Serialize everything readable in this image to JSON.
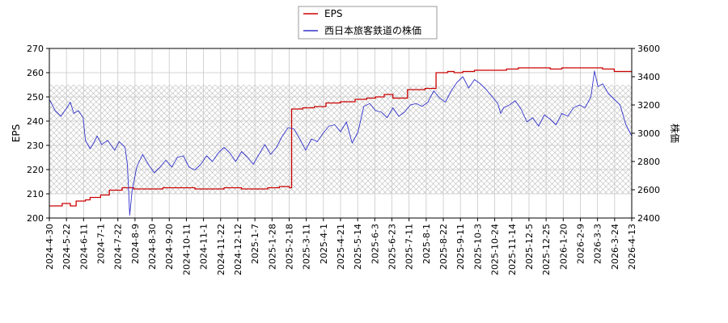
{
  "chart_data": {
    "type": "line",
    "x_tick_labels": [
      "2024-4-30",
      "2024-5-22",
      "2024-6-11",
      "2024-7-1",
      "2024-7-22",
      "2024-8-9",
      "2024-8-30",
      "2024-9-20",
      "2024-10-11",
      "2024-11-1",
      "2024-11-22",
      "2024-12-12",
      "2025-1-7",
      "2025-1-28",
      "2025-2-18",
      "2025-3-11",
      "2025-4-1",
      "2025-4-21",
      "2025-5-14",
      "2025-6-3",
      "2025-6-23",
      "2025-7-11",
      "2025-8-1",
      "2025-8-22",
      "2025-9-11",
      "2025-10-3",
      "2025-10-24",
      "2025-11-14",
      "2025-12-5",
      "2025-12-25",
      "2026-1-20",
      "2026-2-9",
      "2026-3-3",
      "2026-3-24",
      "2026-4-13"
    ],
    "left_axis": {
      "label": "EPS",
      "ylim": [
        200,
        270
      ],
      "ticks": [
        200,
        210,
        220,
        230,
        240,
        250,
        260,
        270
      ]
    },
    "right_axis": {
      "label": "株価",
      "ylim": [
        2400,
        3600
      ],
      "ticks": [
        2400,
        2600,
        2800,
        3000,
        3200,
        3400,
        3600
      ]
    },
    "hatched_band": [
      210,
      255
    ],
    "grid": true,
    "legend_position": "top-center",
    "series": [
      {
        "name": "EPS",
        "axis": "left",
        "color": "#cc0000",
        "step": true,
        "points": [
          [
            0,
            205
          ],
          [
            2.2,
            206
          ],
          [
            3.6,
            205
          ],
          [
            4.6,
            207
          ],
          [
            6.2,
            207.5
          ],
          [
            7,
            208.5
          ],
          [
            8.8,
            209.5
          ],
          [
            10.3,
            211.5
          ],
          [
            12.5,
            212.5
          ],
          [
            14.5,
            212
          ],
          [
            16.5,
            212
          ],
          [
            18.7,
            212
          ],
          [
            19.5,
            212.5
          ],
          [
            21.5,
            212.5
          ],
          [
            25,
            212
          ],
          [
            27,
            212
          ],
          [
            30,
            212.5
          ],
          [
            33,
            212
          ],
          [
            36,
            212
          ],
          [
            37.5,
            212.5
          ],
          [
            39.5,
            213
          ],
          [
            41.2,
            212.5
          ],
          [
            41.6,
            245
          ],
          [
            43.5,
            245.5
          ],
          [
            45.5,
            246
          ],
          [
            47.5,
            247.5
          ],
          [
            50,
            248
          ],
          [
            52.5,
            249
          ],
          [
            54.5,
            249.5
          ],
          [
            56,
            250
          ],
          [
            57.5,
            251
          ],
          [
            59,
            249.5
          ],
          [
            61.5,
            253
          ],
          [
            63.5,
            253
          ],
          [
            64.5,
            253.5
          ],
          [
            66.4,
            260
          ],
          [
            68.4,
            260.5
          ],
          [
            69.5,
            260
          ],
          [
            71,
            260.5
          ],
          [
            73,
            261
          ],
          [
            75.5,
            261
          ],
          [
            78.5,
            261.5
          ],
          [
            80.5,
            262
          ],
          [
            83,
            262
          ],
          [
            85,
            262
          ],
          [
            86,
            261.5
          ],
          [
            88,
            262
          ],
          [
            91.5,
            262
          ],
          [
            95,
            261.5
          ],
          [
            97,
            260.5
          ],
          [
            100,
            260.5
          ]
        ]
      },
      {
        "name": "西日本旅客鉄道の株価",
        "axis": "right",
        "color": "#3333cc",
        "step": false,
        "points": [
          [
            0,
            3240
          ],
          [
            1,
            3160
          ],
          [
            2,
            3120
          ],
          [
            3,
            3180
          ],
          [
            3.6,
            3220
          ],
          [
            4.2,
            3140
          ],
          [
            5,
            3160
          ],
          [
            5.8,
            3110
          ],
          [
            6.2,
            2950
          ],
          [
            7,
            2890
          ],
          [
            7.6,
            2930
          ],
          [
            8.2,
            2980
          ],
          [
            9,
            2920
          ],
          [
            10,
            2950
          ],
          [
            11.2,
            2880
          ],
          [
            12,
            2940
          ],
          [
            13,
            2900
          ],
          [
            13.4,
            2780
          ],
          [
            13.8,
            2420
          ],
          [
            14.2,
            2590
          ],
          [
            15,
            2760
          ],
          [
            16,
            2850
          ],
          [
            17,
            2780
          ],
          [
            18,
            2720
          ],
          [
            19,
            2760
          ],
          [
            20,
            2810
          ],
          [
            21,
            2760
          ],
          [
            22,
            2830
          ],
          [
            23,
            2840
          ],
          [
            24,
            2760
          ],
          [
            25,
            2740
          ],
          [
            26,
            2780
          ],
          [
            27,
            2840
          ],
          [
            28,
            2800
          ],
          [
            29,
            2860
          ],
          [
            30,
            2900
          ],
          [
            31,
            2860
          ],
          [
            32,
            2800
          ],
          [
            33,
            2870
          ],
          [
            34,
            2830
          ],
          [
            35,
            2780
          ],
          [
            36,
            2850
          ],
          [
            37,
            2920
          ],
          [
            38,
            2850
          ],
          [
            39,
            2900
          ],
          [
            40,
            2980
          ],
          [
            41,
            3040
          ],
          [
            42,
            3030
          ],
          [
            43,
            2960
          ],
          [
            44,
            2880
          ],
          [
            45,
            2960
          ],
          [
            46,
            2940
          ],
          [
            47,
            3000
          ],
          [
            48,
            3050
          ],
          [
            49,
            3060
          ],
          [
            50,
            3010
          ],
          [
            51,
            3080
          ],
          [
            52,
            2930
          ],
          [
            53,
            3010
          ],
          [
            54,
            3190
          ],
          [
            55,
            3210
          ],
          [
            56,
            3160
          ],
          [
            57,
            3150
          ],
          [
            58,
            3110
          ],
          [
            59,
            3180
          ],
          [
            60,
            3120
          ],
          [
            61,
            3150
          ],
          [
            62,
            3200
          ],
          [
            63,
            3210
          ],
          [
            64,
            3190
          ],
          [
            65,
            3220
          ],
          [
            66,
            3300
          ],
          [
            67,
            3250
          ],
          [
            68,
            3220
          ],
          [
            69,
            3300
          ],
          [
            70,
            3360
          ],
          [
            71,
            3400
          ],
          [
            72,
            3320
          ],
          [
            73,
            3380
          ],
          [
            74,
            3350
          ],
          [
            75,
            3310
          ],
          [
            76,
            3260
          ],
          [
            77,
            3210
          ],
          [
            77.5,
            3140
          ],
          [
            78,
            3180
          ],
          [
            79,
            3200
          ],
          [
            80,
            3230
          ],
          [
            81,
            3170
          ],
          [
            82,
            3080
          ],
          [
            83,
            3110
          ],
          [
            84,
            3050
          ],
          [
            85,
            3130
          ],
          [
            86,
            3100
          ],
          [
            87,
            3060
          ],
          [
            88,
            3140
          ],
          [
            89,
            3120
          ],
          [
            90,
            3180
          ],
          [
            91,
            3200
          ],
          [
            92,
            3180
          ],
          [
            93,
            3260
          ],
          [
            93.6,
            3440
          ],
          [
            94.2,
            3330
          ],
          [
            95,
            3350
          ],
          [
            96,
            3280
          ],
          [
            97,
            3240
          ],
          [
            98,
            3200
          ],
          [
            99,
            3060
          ],
          [
            100,
            2980
          ]
        ]
      }
    ]
  }
}
